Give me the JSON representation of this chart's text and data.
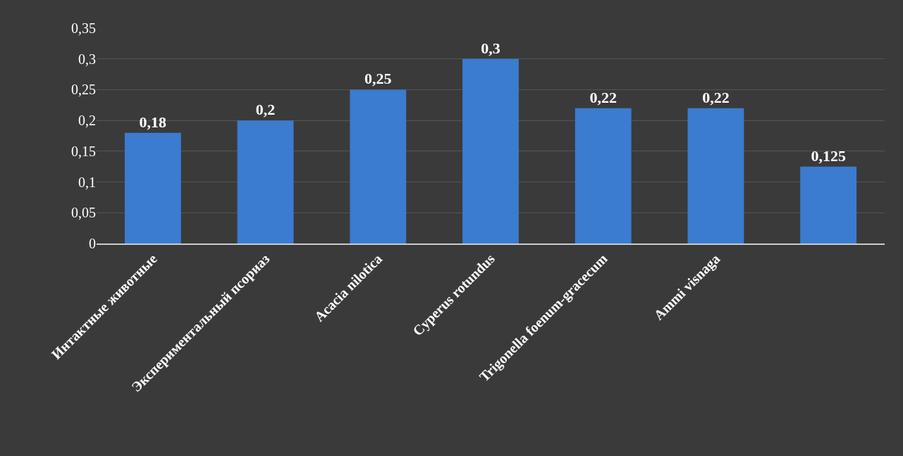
{
  "chart_data": {
    "type": "bar",
    "categories": [
      "Интактные животные",
      "Экспериментальный псориаз",
      "Acacia nilotica",
      "Cyperus rotundus",
      "Trigonella foenum-gracecum",
      "Ammi visnaga",
      null
    ],
    "values": [
      0.18,
      0.2,
      0.25,
      0.3,
      0.22,
      0.22,
      0.125
    ],
    "value_labels": [
      "0,18",
      "0,2",
      "0,25",
      "0,3",
      "0,22",
      "0,22",
      "0,125"
    ],
    "color": "#3b7bd0",
    "ylim": [
      0,
      0.35
    ],
    "yticks": [
      0,
      {
        "value": 0.05,
        "label": "0,05"
      },
      {
        "value": 0.1,
        "label": "0,1"
      },
      {
        "value": 0.15,
        "label": "0,15"
      },
      {
        "value": 0.2,
        "label": "0,2"
      },
      {
        "value": 0.25,
        "label": "0,25"
      },
      {
        "value": 0.3,
        "label": "0,3"
      },
      {
        "value": 0.35,
        "label": "0,35"
      }
    ],
    "grid": "y"
  }
}
